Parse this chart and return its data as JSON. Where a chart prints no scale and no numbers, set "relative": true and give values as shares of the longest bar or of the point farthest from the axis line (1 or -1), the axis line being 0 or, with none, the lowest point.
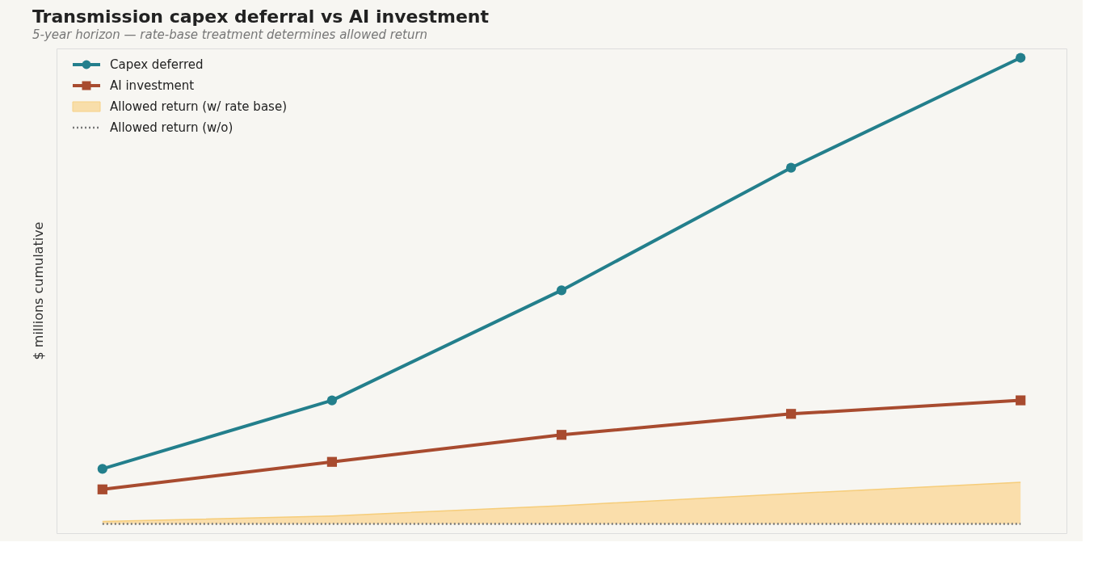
{
  "chart_data": {
    "type": "line",
    "title": "Transmission capex deferral vs AI investment",
    "subtitle": "5-year horizon — rate-base treatment determines allowed return",
    "ylabel": "$ millions cumulative",
    "relative": true,
    "categories": [
      null,
      null,
      null,
      null,
      null
    ],
    "legend": "top left",
    "grid": false,
    "series": [
      {
        "name": "Capex deferred",
        "color": "#237f8c",
        "marker": "circle",
        "values": [
          0.118,
          0.265,
          0.501,
          0.764,
          1
        ]
      },
      {
        "name": "AI investment",
        "color": "#a84b2f",
        "marker": "square",
        "values": [
          0.074,
          0.133,
          0.191,
          0.236,
          0.265
        ]
      },
      {
        "name": "Allowed return (w/ rate base)",
        "type": "area",
        "color": "#f9dca3",
        "values": [
          0.005,
          0.017,
          0.039,
          0.065,
          0.089
        ]
      },
      {
        "name": "Allowed return (w/o)",
        "color": "#777777",
        "marker": "none",
        "line_style": "dotted",
        "values": [
          0,
          0,
          0,
          0,
          0
        ]
      }
    ]
  }
}
